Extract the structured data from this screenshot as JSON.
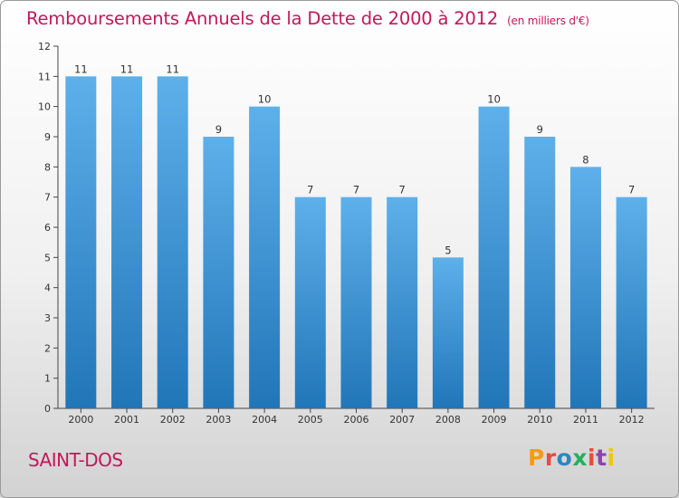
{
  "header": {
    "title": "Remboursements Annuels de la Dette de 2000 à 2012",
    "unit": "(en milliers d'€)"
  },
  "footer": {
    "commune": "SAINT-DOS",
    "logo": "Proxiti",
    "logo_colors": [
      "#f39c12",
      "#e74c3c",
      "#2e86c1",
      "#27ae60",
      "#e74c3c",
      "#8e44ad",
      "#f1c40f"
    ]
  },
  "colors": {
    "title": "#c2185b",
    "bar_top": "#5eb0ea",
    "bar_bottom": "#2176b8",
    "axis": "#444444",
    "label": "#333333"
  },
  "chart_data": {
    "type": "bar",
    "categories": [
      "2000",
      "2001",
      "2002",
      "2003",
      "2004",
      "2005",
      "2006",
      "2007",
      "2008",
      "2009",
      "2010",
      "2011",
      "2012"
    ],
    "values": [
      11,
      11,
      11,
      9,
      10,
      7,
      7,
      7,
      5,
      10,
      9,
      8,
      7
    ],
    "ylim": [
      0,
      12
    ],
    "yticks": [
      0,
      1,
      2,
      3,
      4,
      5,
      6,
      7,
      8,
      9,
      10,
      11,
      12
    ],
    "title": "Remboursements Annuels de la Dette de 2000 à 2012",
    "xlabel": "",
    "ylabel": "",
    "grid": false,
    "data_labels": true
  }
}
